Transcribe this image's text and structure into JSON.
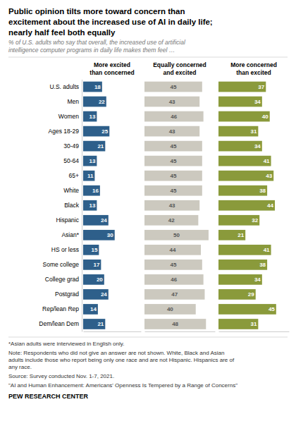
{
  "chart_data": {
    "type": "bar",
    "orientation": "horizontal",
    "title": "Public opinion tilts more toward concern than\nexcitement about the increased use of AI in daily life;\nnearly half feel both equally",
    "subtitle": "% of U.S. adults who say that overall, the increased use of artificial\nintelligence computer programs in daily life makes them feel …",
    "categories": [
      "U.S. adults",
      "Men",
      "Women",
      "Ages 18-29",
      "30-49",
      "50-64",
      "65+",
      "White",
      "Black",
      "Hispanic",
      "Asian*",
      "HS or less",
      "Some college",
      "College grad",
      "Postgrad",
      "Rep/lean Rep",
      "Dem/lean Dem"
    ],
    "series": [
      {
        "name": "More excited\nthan concerned",
        "color": "#2e5f8a",
        "values": [
          18,
          22,
          13,
          25,
          21,
          13,
          11,
          16,
          13,
          24,
          30,
          15,
          17,
          20,
          24,
          14,
          21
        ]
      },
      {
        "name": "Equally concerned\nand excited",
        "color": "#ccc9bf",
        "values": [
          45,
          43,
          46,
          43,
          45,
          45,
          45,
          45,
          43,
          42,
          50,
          44,
          45,
          46,
          47,
          40,
          48
        ]
      },
      {
        "name": "More concerned\nthan excited",
        "color": "#8a9a3b",
        "values": [
          37,
          34,
          40,
          31,
          34,
          41,
          43,
          38,
          44,
          32,
          21,
          41,
          38,
          34,
          29,
          45,
          31
        ]
      }
    ],
    "xlim": [
      0,
      55
    ],
    "data_labels": true,
    "tick_labels": "y",
    "grid": false,
    "annotations": [
      "*Asian adults were interviewed in English only.",
      "Note: Respondents who did not give an answer are not shown. White, Black and Asian\nadults include those who report being only one race and are not Hispanic. Hispanics are of\nany race.",
      "Source: Survey conducted Nov. 1-7, 2021.",
      "\"AI and Human Enhancement: Americans' Openness Is Tempered by a Range of Concerns\"",
      "PEW RESEARCH CENTER"
    ]
  }
}
